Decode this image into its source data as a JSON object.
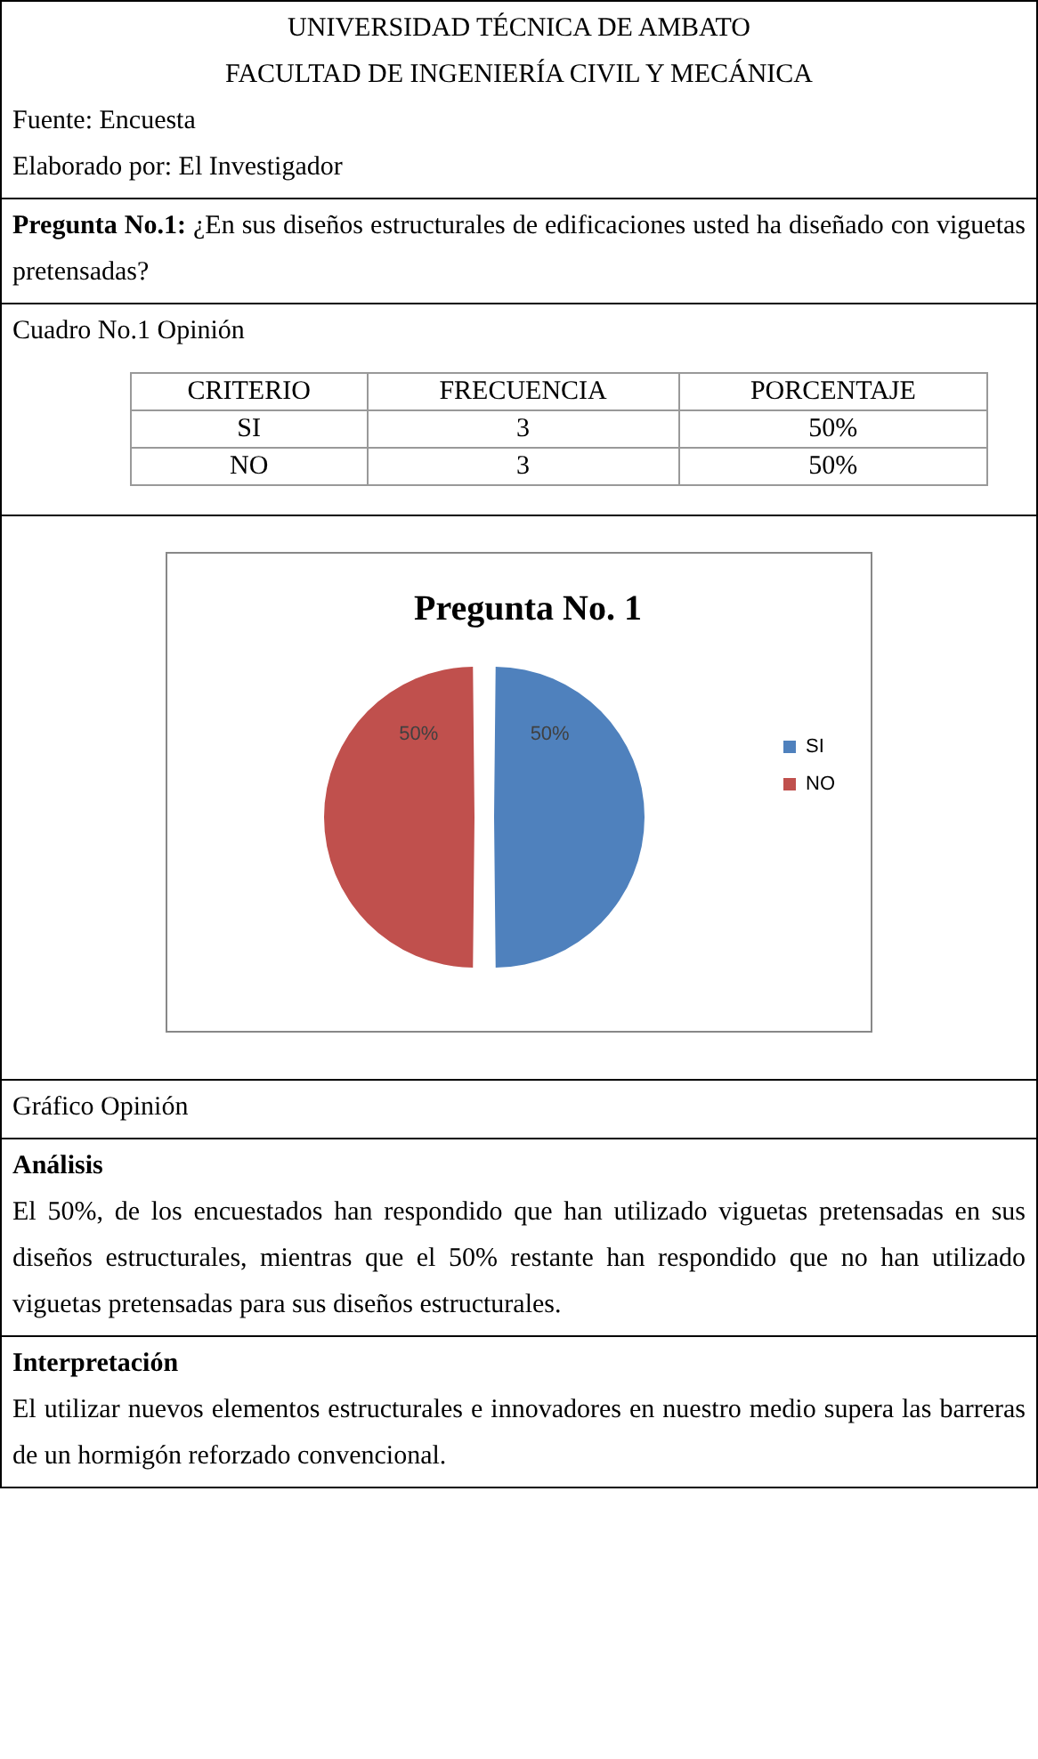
{
  "chart_data": [
    {
      "type": "other",
      "title": "UNIVERSIDAD TÉCNICA DE AMBATO",
      "subtitle": "FACULTAD DE INGENIERÍA CIVIL Y MECÁNICA",
      "annotations": [
        "Fuente: Encuesta",
        "Elaborado por: El Investigador"
      ]
    },
    {
      "type": "other",
      "title": "Pregunta No.1:",
      "annotations": [
        "¿En sus diseños estructurales de edificaciones usted ha diseñado con viguetas pretensadas?"
      ]
    },
    {
      "type": "other",
      "title": "Cuadro No.1 Opinión",
      "annotations": [
        "CRITERIO",
        "FRECUENCIA",
        "PORCENTAJE",
        "SI",
        "3",
        "50%",
        "NO",
        "3",
        "50%"
      ]
    },
    {
      "type": "pie",
      "title": "Pregunta No. 1",
      "categories": [
        "SI",
        "NO"
      ],
      "values": [
        50,
        50
      ],
      "colors": [
        "#4f81bd",
        "#c0504d"
      ],
      "legend": "right",
      "value_labels": [
        "50%",
        "50%"
      ],
      "annotations": [
        "Gráfico Opinión"
      ]
    },
    {
      "type": "other",
      "title": "Análisis",
      "annotations": [
        "El 50%, de los encuestados han respondido que han utilizado viguetas pretensadas en sus diseños estructurales, mientras que el 50% restante han respondido que no han utilizado viguetas pretensadas para sus diseños estructurales."
      ]
    },
    {
      "type": "other",
      "title": "Interpretación",
      "annotations": [
        "El utilizar nuevos elementos estructurales e innovadores en nuestro medio supera las barreras de un hormigón reforzado convencional."
      ]
    }
  ]
}
